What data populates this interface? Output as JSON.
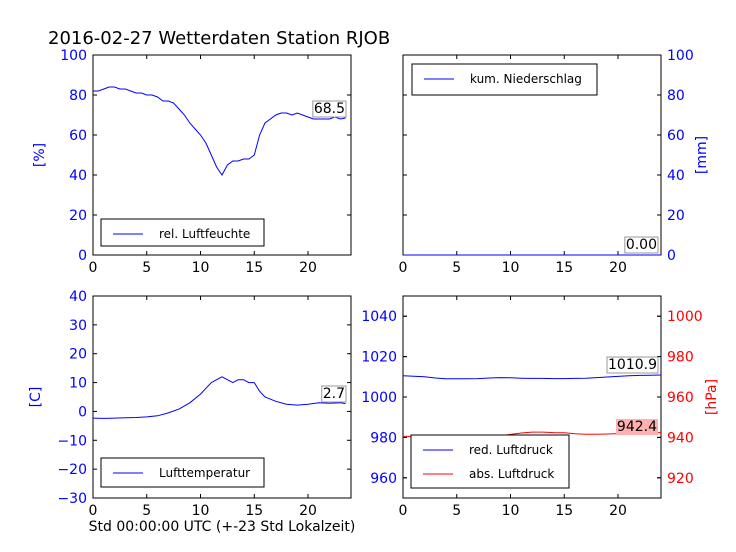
{
  "figure": {
    "title": "2016-02-27 Wetterdaten Station RJOB",
    "xlabel": "Std 00:00:00 UTC (+-23 Std Lokalzeit)"
  },
  "colors": {
    "primary": "#0000ff",
    "secondary": "#ff0000",
    "last_bg": "#ffb0b0"
  },
  "chart_data": [
    {
      "type": "line",
      "ylabel": "[%]",
      "ylim": [
        0,
        100
      ],
      "xlim": [
        0,
        24
      ],
      "xticks": [
        "0",
        "5",
        "10",
        "15",
        "20"
      ],
      "yticks": [
        "0",
        "20",
        "40",
        "60",
        "80",
        "100"
      ],
      "legend": "lower-left",
      "last_value": "68.5",
      "series": [
        {
          "name": "rel. Luftfeuchte",
          "color": "#0000ff",
          "x": [
            0,
            0.5,
            1,
            1.5,
            2,
            2.5,
            3,
            3.5,
            4,
            4.5,
            5,
            5.5,
            6,
            6.5,
            7,
            7.5,
            8,
            8.5,
            9,
            9.5,
            10,
            10.5,
            11,
            11.5,
            12,
            12.5,
            13,
            13.5,
            14,
            14.5,
            15,
            15.5,
            16,
            16.5,
            17,
            17.5,
            18,
            18.5,
            19,
            19.5,
            20,
            20.5,
            21,
            21.5,
            22,
            22.5,
            23,
            23.5
          ],
          "y": [
            82,
            82,
            83,
            84,
            84,
            83,
            83,
            82,
            81,
            81,
            80,
            80,
            79,
            77,
            77,
            76,
            73,
            70,
            66,
            63,
            60,
            56,
            50,
            44,
            40,
            45,
            47,
            47,
            48,
            48,
            50,
            60,
            66,
            68,
            70,
            71,
            71,
            70,
            71,
            70,
            69,
            68,
            68,
            68,
            68,
            69,
            68,
            68.5
          ]
        }
      ]
    },
    {
      "type": "line",
      "ylabel": "[mm]",
      "ylim": [
        0,
        100
      ],
      "xlim": [
        0,
        24
      ],
      "xticks": [
        "0",
        "5",
        "10",
        "15",
        "20"
      ],
      "yticks": [
        "0",
        "20",
        "40",
        "60",
        "80",
        "100"
      ],
      "legend": "upper-left",
      "last_value": "0.00",
      "series": [
        {
          "name": "kum. Niederschlag",
          "color": "#0000ff",
          "x": [
            0,
            24
          ],
          "y": [
            0,
            0
          ]
        }
      ]
    },
    {
      "type": "line",
      "ylabel": "[C]",
      "ylim": [
        -30,
        40
      ],
      "xlim": [
        0,
        24
      ],
      "xticks": [
        "0",
        "5",
        "10",
        "15",
        "20"
      ],
      "yticks": [
        "−30",
        "−20",
        "−10",
        "0",
        "10",
        "20",
        "30",
        "40"
      ],
      "legend": "lower-left",
      "last_value": "2.7",
      "series": [
        {
          "name": "Lufttemperatur",
          "color": "#0000ff",
          "x": [
            0,
            1,
            2,
            3,
            4,
            5,
            6,
            7,
            8,
            9,
            10,
            10.5,
            11,
            11.5,
            12,
            12.5,
            13,
            13.5,
            14,
            14.5,
            15,
            15.5,
            16,
            17,
            18,
            19,
            20,
            21,
            22,
            23,
            23.5
          ],
          "y": [
            -2.3,
            -2.4,
            -2.3,
            -2.2,
            -2.1,
            -1.9,
            -1.5,
            -0.5,
            0.8,
            3,
            6,
            8,
            10,
            11,
            12,
            11,
            10,
            11,
            11,
            10,
            10,
            7,
            5,
            3.5,
            2.5,
            2.2,
            2.5,
            3,
            2.8,
            3,
            2.7
          ]
        }
      ]
    },
    {
      "type": "line",
      "ylabel": "[hPa]",
      "ylim": [
        950,
        1050
      ],
      "ylim_right": [
        910,
        1010
      ],
      "xlim": [
        0,
        24
      ],
      "xticks": [
        "0",
        "5",
        "10",
        "15",
        "20"
      ],
      "yticks": [
        "960",
        "980",
        "1000",
        "1020",
        "1040"
      ],
      "yticks_right": [
        "920",
        "940",
        "960",
        "980",
        "1000"
      ],
      "legend": "lower-left",
      "last_value": "1010.9",
      "last_value_2": "942.4",
      "series": [
        {
          "name": "red. Luftdruck",
          "color": "#0000ff",
          "axis": "left",
          "x": [
            0,
            1,
            2,
            3,
            4,
            5,
            6,
            7,
            8,
            9,
            10,
            11,
            12,
            13,
            14,
            15,
            16,
            17,
            18,
            19,
            20,
            21,
            22,
            23,
            24
          ],
          "y": [
            1010.5,
            1010.3,
            1010,
            1009.4,
            1009,
            1009,
            1009,
            1009.1,
            1009.4,
            1009.6,
            1009.5,
            1009.3,
            1009.2,
            1009.2,
            1009.1,
            1009.1,
            1009.2,
            1009.3,
            1009.6,
            1009.9,
            1010.2,
            1010.5,
            1010.7,
            1010.8,
            1010.9
          ]
        },
        {
          "name": "abs. Luftdruck",
          "color": "#ff0000",
          "axis": "right",
          "x": [
            0,
            1,
            2,
            3,
            4,
            5,
            6,
            7,
            8,
            9,
            10,
            11,
            12,
            13,
            14,
            15,
            16,
            17,
            18,
            19,
            20,
            21,
            22,
            23,
            24
          ],
          "y": [
            940.5,
            940.5,
            940.2,
            939.5,
            939,
            939,
            939.2,
            939.6,
            940.2,
            940.8,
            941.5,
            942.2,
            942.6,
            942.6,
            942.4,
            942.3,
            941.8,
            941.6,
            941.6,
            941.7,
            941.9,
            942.1,
            942.2,
            942.3,
            942.4
          ]
        }
      ]
    }
  ]
}
